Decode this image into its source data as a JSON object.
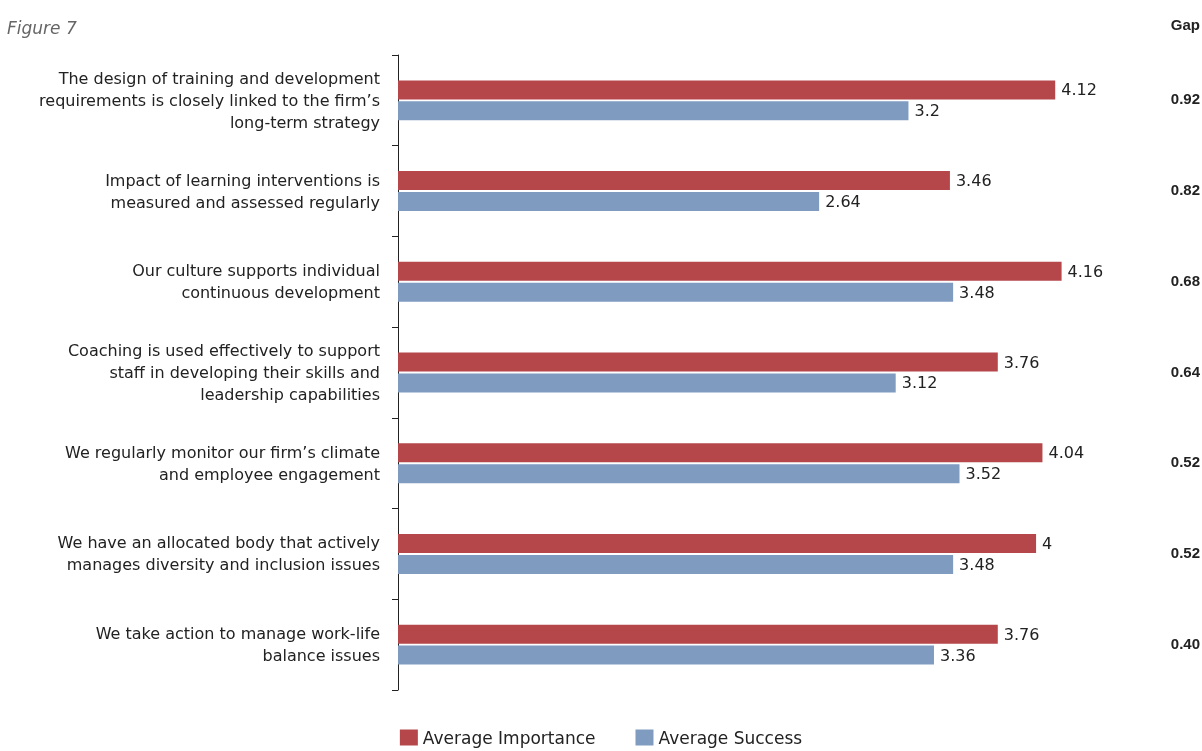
{
  "chart_data": {
    "type": "bar",
    "orientation": "horizontal",
    "title": "Figure 7",
    "categories": [
      "The design of training and development\nrequirements is closely linked to the firm’s\nlong-term strategy",
      "Impact of learning interventions is\nmeasured and assessed regularly",
      "Our culture supports individual\ncontinuous development",
      "Coaching is used effectively to support\nstaff in developing their skills and\nleadership capabilities",
      "We regularly monitor our firm’s climate\nand employee engagement",
      "We have an allocated body that actively\nmanages diversity and inclusion issues",
      "We take action to manage work-life\nbalance issues"
    ],
    "series": [
      {
        "name": "Average Importance",
        "color": "#b5474b",
        "values": [
          4.12,
          3.46,
          4.16,
          3.76,
          4.04,
          4,
          3.76
        ]
      },
      {
        "name": "Average Success",
        "color": "#7f9bc0",
        "values": [
          3.2,
          2.64,
          3.48,
          3.12,
          3.52,
          3.48,
          3.36
        ]
      }
    ],
    "data_labels": true,
    "legend": "bottom",
    "annotations": [
      "Gap",
      "0.92",
      "0.82",
      "0.68",
      "0.64",
      "0.52",
      "0.52",
      "0.40"
    ]
  }
}
